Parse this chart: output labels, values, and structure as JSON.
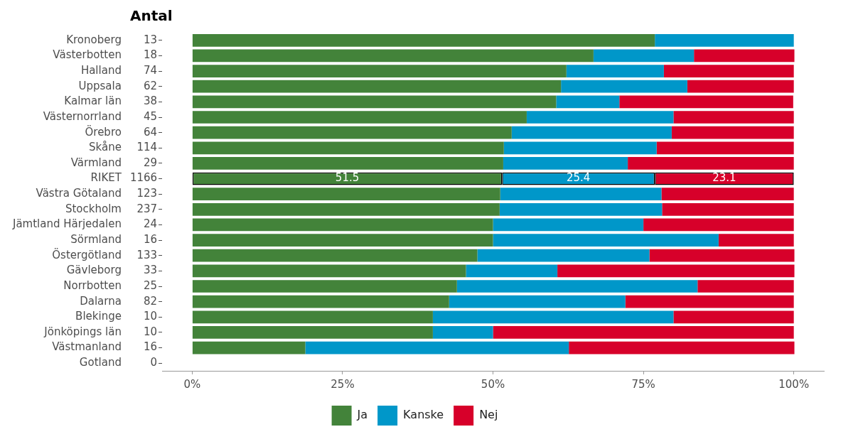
{
  "chart_data": {
    "type": "bar",
    "orientation": "horizontal",
    "stacked": true,
    "y2label": "Antal",
    "categories": [
      "Kronoberg",
      "Västerbotten",
      "Halland",
      "Uppsala",
      "Kalmar län",
      "Västernorrland",
      "Örebro",
      "Skåne",
      "Värmland",
      "RIKET",
      "Västra Götaland",
      "Stockholm",
      "Jämtland Härjedalen",
      "Sörmland",
      "Östergötland",
      "Gävleborg",
      "Norrbotten",
      "Dalarna",
      "Blekinge",
      "Jönköpings län",
      "Västmanland",
      "Gotland"
    ],
    "y2_categories": [
      "13",
      "18",
      "74",
      "62",
      "38",
      "45",
      "64",
      "114",
      "29",
      "1166",
      "123",
      "237",
      "24",
      "16",
      "133",
      "33",
      "25",
      "82",
      "10",
      "10",
      "16",
      "0"
    ],
    "series": [
      {
        "name": "Ja",
        "color": "#43833a",
        "values": [
          76.9,
          66.7,
          62.2,
          61.3,
          60.5,
          55.6,
          53.1,
          51.8,
          51.7,
          51.5,
          51.2,
          51.1,
          50,
          50,
          47.4,
          45.5,
          44,
          42.7,
          40,
          40,
          18.8,
          null
        ],
        "value_labels": [
          null,
          null,
          null,
          null,
          null,
          null,
          null,
          null,
          null,
          "51.5",
          null,
          null,
          null,
          null,
          null,
          null,
          null,
          null,
          null,
          null,
          null,
          null
        ]
      },
      {
        "name": "Kanske",
        "color": "#0097c9",
        "values": [
          23.1,
          16.7,
          16.2,
          21,
          10.5,
          24.4,
          26.6,
          25.4,
          20.7,
          25.4,
          26.8,
          27,
          25,
          37.5,
          28.6,
          15.2,
          40,
          29.3,
          40,
          10,
          43.8,
          null
        ],
        "value_labels": [
          null,
          null,
          null,
          null,
          null,
          null,
          null,
          null,
          null,
          "25.4",
          null,
          null,
          null,
          null,
          null,
          null,
          null,
          null,
          null,
          null,
          null,
          null
        ]
      },
      {
        "name": "Nej",
        "color": "#d7002a",
        "values": [
          0,
          16.7,
          21.6,
          17.7,
          28.9,
          20,
          20.3,
          22.8,
          27.6,
          23.1,
          22,
          21.9,
          25,
          12.5,
          24.1,
          39.4,
          16,
          28,
          20,
          50,
          37.5,
          null
        ],
        "value_labels": [
          null,
          null,
          null,
          null,
          null,
          null,
          null,
          null,
          null,
          "23.1",
          null,
          null,
          null,
          null,
          null,
          null,
          null,
          null,
          null,
          null,
          null,
          null
        ]
      }
    ],
    "xlim": [
      -5,
      105
    ],
    "xticks": [
      {
        "value": 0,
        "label": "0%"
      },
      {
        "value": 25,
        "label": "25%"
      },
      {
        "value": 50,
        "label": "50%"
      },
      {
        "value": 75,
        "label": "75%"
      },
      {
        "value": 100,
        "label": "100%"
      }
    ],
    "grid": false,
    "legend": "bottom"
  }
}
